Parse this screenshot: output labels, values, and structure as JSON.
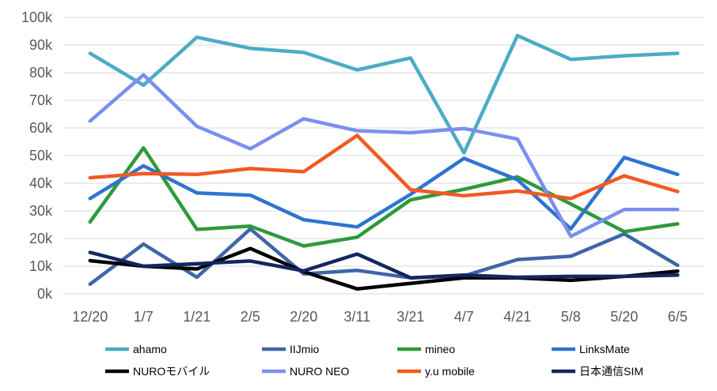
{
  "chart_data": {
    "type": "line",
    "title": "",
    "xlabel": "",
    "ylabel": "",
    "categories": [
      "12/20",
      "1/7",
      "1/21",
      "2/5",
      "2/20",
      "3/11",
      "3/21",
      "4/7",
      "4/21",
      "5/8",
      "5/20",
      "6/5"
    ],
    "ylim": [
      0,
      100000
    ],
    "yticks": [
      {
        "value": 0,
        "label": "0k"
      },
      {
        "value": 10000,
        "label": "10k"
      },
      {
        "value": 20000,
        "label": "20k"
      },
      {
        "value": 30000,
        "label": "30k"
      },
      {
        "value": 40000,
        "label": "40k"
      },
      {
        "value": 50000,
        "label": "50k"
      },
      {
        "value": 60000,
        "label": "60k"
      },
      {
        "value": 70000,
        "label": "70k"
      },
      {
        "value": 80000,
        "label": "80k"
      },
      {
        "value": 90000,
        "label": "90k"
      },
      {
        "value": 100000,
        "label": "100k"
      }
    ],
    "grid": true,
    "legend_position": "bottom",
    "series": [
      {
        "name": "ahamo",
        "color": "#4bacc6",
        "values": [
          87000,
          75500,
          92800,
          88800,
          87300,
          81000,
          85300,
          51000,
          93400,
          84800,
          86100,
          87000
        ]
      },
      {
        "name": "IIJmio",
        "color": "#3e66a8",
        "values": [
          3500,
          18000,
          6000,
          23500,
          7200,
          8500,
          5800,
          6500,
          12400,
          13600,
          21700,
          10300
        ]
      },
      {
        "name": "mineo",
        "color": "#2e9a3c",
        "values": [
          26000,
          52800,
          23300,
          24500,
          17300,
          20500,
          34000,
          37800,
          42300,
          32500,
          22500,
          25300
        ]
      },
      {
        "name": "LinksMate",
        "color": "#2f74cf",
        "values": [
          34500,
          46300,
          36500,
          35700,
          26800,
          24200,
          36000,
          49000,
          41300,
          23500,
          49300,
          43200
        ]
      },
      {
        "name": "NUROモバイル",
        "color": "#000000",
        "values": [
          12000,
          10000,
          9000,
          16400,
          8000,
          1800,
          3800,
          5800,
          5800,
          4900,
          6300,
          8200
        ]
      },
      {
        "name": "NURO NEO",
        "color": "#7b8ff0",
        "values": [
          62500,
          79200,
          60600,
          52500,
          63300,
          59000,
          58300,
          59800,
          56000,
          20800,
          30500,
          30500
        ]
      },
      {
        "name": "y.u mobile",
        "color": "#f15a22",
        "values": [
          42000,
          43500,
          43200,
          45300,
          44200,
          57300,
          37700,
          35500,
          37200,
          34500,
          42700,
          37000
        ]
      },
      {
        "name": "日本通信SIM",
        "color": "#13265f",
        "values": [
          15000,
          10000,
          10900,
          11900,
          8300,
          14400,
          5800,
          6800,
          6000,
          6300,
          6300,
          6800
        ]
      }
    ]
  }
}
